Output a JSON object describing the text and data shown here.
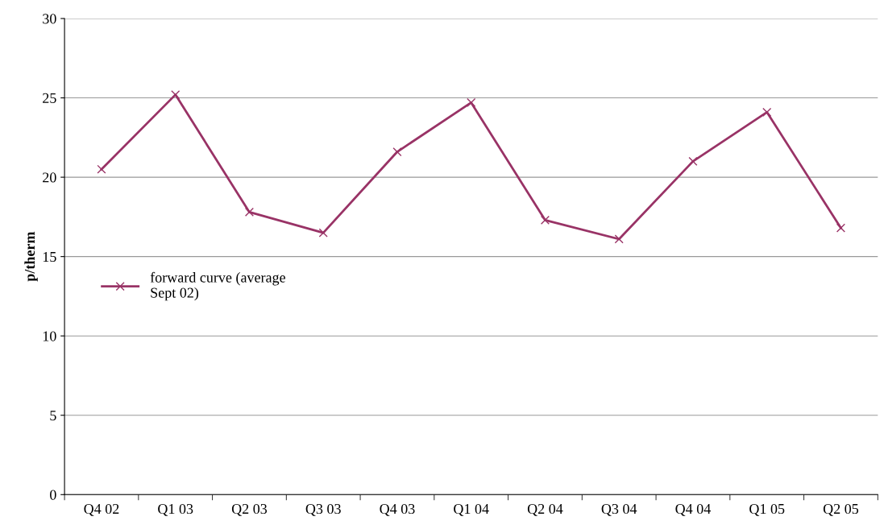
{
  "chart_data": {
    "type": "line",
    "ylabel": "p/therm",
    "categories": [
      "Q4 02",
      "Q1 03",
      "Q2 03",
      "Q3 03",
      "Q4 03",
      "Q1 04",
      "Q2 04",
      "Q3 04",
      "Q4 04",
      "Q1 05",
      "Q2 05"
    ],
    "series": [
      {
        "name": "forward curve (average\nSept 02)",
        "color": "#993366",
        "values": [
          20.5,
          25.2,
          17.8,
          16.5,
          21.6,
          24.7,
          17.3,
          16.1,
          21.0,
          24.1,
          16.8
        ]
      }
    ],
    "ylim": [
      0,
      30
    ],
    "yticks": [
      0,
      5,
      10,
      15,
      20,
      25,
      30
    ],
    "grid": "y",
    "legend": "left",
    "marker": "cross",
    "line_style": "solid"
  }
}
